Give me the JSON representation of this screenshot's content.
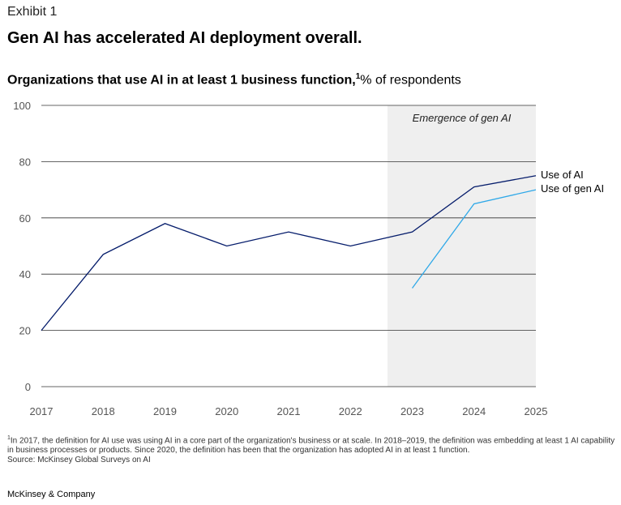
{
  "exhibit_label": "Exhibit 1",
  "headline": "Gen AI has accelerated AI deployment overall.",
  "subtitle": {
    "bold": "Organizations that use AI in at least 1 business function,",
    "footnote_marker": "1",
    "unit": "% of respondents"
  },
  "chart_data": {
    "type": "line",
    "x": [
      2017,
      2018,
      2019,
      2020,
      2021,
      2022,
      2023,
      2024,
      2025
    ],
    "series": [
      {
        "name": "Use of AI",
        "color": "#051c6b",
        "values": [
          20,
          47,
          58,
          50,
          55,
          50,
          55,
          71,
          75
        ]
      },
      {
        "name": "Use of gen AI",
        "color": "#2ea8e8",
        "values": [
          null,
          null,
          null,
          null,
          null,
          null,
          35,
          65,
          70
        ]
      }
    ],
    "ylim": [
      0,
      100
    ],
    "yticks": [
      0,
      20,
      40,
      60,
      80,
      100
    ],
    "grid": true,
    "annotation": {
      "label": "Emergence of gen AI",
      "x_range": [
        2022.6,
        2025
      ],
      "fill": "#efefef"
    }
  },
  "footnote": {
    "marker": "1",
    "text": "In 2017, the definition for AI use was using AI in a core part of the organization's business or at scale. In 2018–2019, the definition was embedding at least 1 AI capability in business processes or products. Since 2020, the definition has been that the organization has adopted AI in at least 1 function.",
    "source": "Source: McKinsey Global Surveys on AI"
  },
  "brand": "McKinsey & Company"
}
